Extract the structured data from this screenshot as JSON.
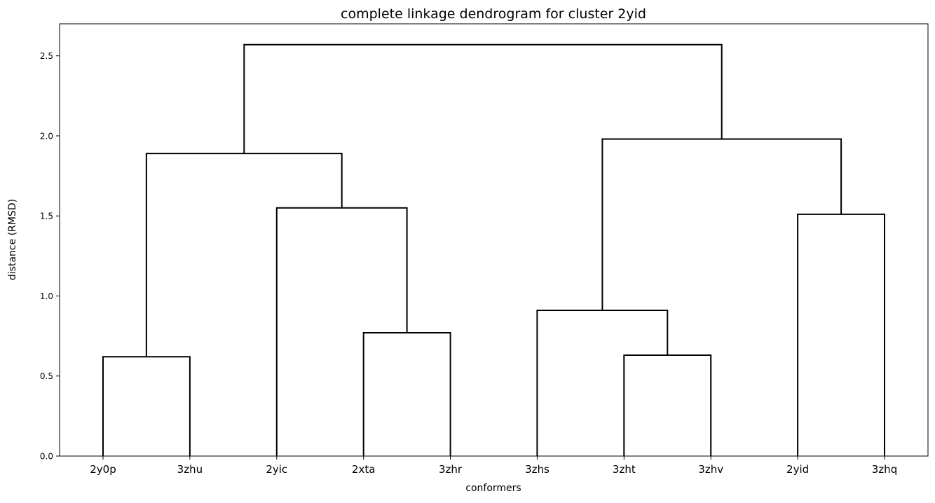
{
  "chart_data": {
    "type": "dendrogram",
    "title": "complete linkage dendrogram for cluster 2yid",
    "xlabel": "conformers",
    "ylabel": "distance (RMSD)",
    "ylim": [
      0,
      2.7
    ],
    "yticks": [
      0.0,
      0.5,
      1.0,
      1.5,
      2.0,
      2.5
    ],
    "ytick_labels": [
      "0.0",
      "0.5",
      "1.0",
      "1.5",
      "2.0",
      "2.5"
    ],
    "grid": false,
    "leaves": [
      "2y0p",
      "3zhu",
      "2yic",
      "2xta",
      "3zhr",
      "3zhs",
      "3zht",
      "3zhv",
      "2yid",
      "3zhq"
    ],
    "merges": [
      {
        "left": "2y0p",
        "right": "3zhu",
        "height": 0.62
      },
      {
        "left": "2xta",
        "right": "3zhr",
        "height": 0.77
      },
      {
        "left": "3zht",
        "right": "3zhv",
        "height": 0.63
      },
      {
        "left": "2yid",
        "right": "3zhq",
        "height": 1.51
      },
      {
        "left": "3zhs",
        "right": "(3zht,3zhv)",
        "height": 0.91
      },
      {
        "left": "2yic",
        "right": "(2xta,3zhr)",
        "height": 1.55
      },
      {
        "left": "(2y0p,3zhu)",
        "right": "(2yic,(2xta,3zhr))",
        "height": 1.89
      },
      {
        "left": "(3zhs,(3zht,3zhv))",
        "right": "(2yid,3zhq)",
        "height": 1.98
      },
      {
        "left": "left-group",
        "right": "right-group",
        "height": 2.57
      }
    ],
    "links": [
      {
        "x": [
          1,
          1,
          2,
          2
        ],
        "y": [
          0.0,
          0.62,
          0.62,
          0.0
        ]
      },
      {
        "x": [
          4,
          4,
          5,
          5
        ],
        "y": [
          0.0,
          0.77,
          0.77,
          0.0
        ]
      },
      {
        "x": [
          3,
          3,
          4.5,
          4.5
        ],
        "y": [
          0.0,
          1.55,
          1.55,
          0.77
        ]
      },
      {
        "x": [
          1.5,
          1.5,
          3.75,
          3.75
        ],
        "y": [
          0.62,
          1.89,
          1.89,
          1.55
        ]
      },
      {
        "x": [
          7,
          7,
          8,
          8
        ],
        "y": [
          0.0,
          0.63,
          0.63,
          0.0
        ]
      },
      {
        "x": [
          6,
          6,
          7.5,
          7.5
        ],
        "y": [
          0.0,
          0.91,
          0.91,
          0.63
        ]
      },
      {
        "x": [
          9,
          9,
          10,
          10
        ],
        "y": [
          0.0,
          1.51,
          1.51,
          0.0
        ]
      },
      {
        "x": [
          6.75,
          6.75,
          9.5,
          9.5
        ],
        "y": [
          0.91,
          1.98,
          1.98,
          1.51
        ]
      },
      {
        "x": [
          2.625,
          2.625,
          8.125,
          8.125
        ],
        "y": [
          1.89,
          2.57,
          2.57,
          1.98
        ]
      }
    ],
    "line_color": "#000000"
  }
}
